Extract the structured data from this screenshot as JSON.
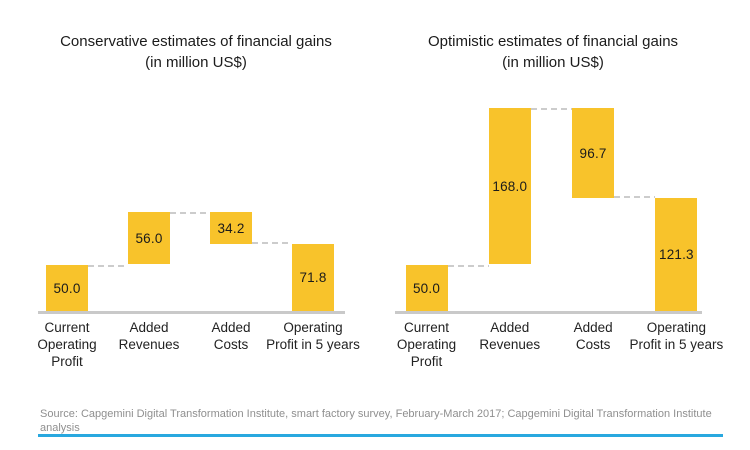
{
  "page": {
    "source_note": "Source: Capgemini Digital Transformation Institute, smart factory survey, February-March 2017; Capgemini Digital Transformation Institute analysis"
  },
  "colors": {
    "bar": "#F8C32B",
    "connector": "#CCCCCC",
    "axis": "#C9C9C9",
    "title_text": "#1B1B1B",
    "value_text": "#1B1B1B",
    "category_text": "#222222",
    "source_text": "#8F8F8F",
    "footer_accent": "#29A8DF"
  },
  "chart_data": [
    {
      "type": "waterfall",
      "title": "Conservative estimates of financial gains",
      "subtitle": "(in million US$)",
      "unit": "million US$",
      "categories": [
        "Current Operating Profit",
        "Added Revenues",
        "Added Costs",
        "Operating Profit in 5 years"
      ],
      "category_lines": [
        [
          "Current",
          "Operating",
          "Profit"
        ],
        [
          "Added",
          "Revenues"
        ],
        [
          "Added",
          "Costs"
        ],
        [
          "Operating",
          "Profit in 5 years"
        ]
      ],
      "measures": [
        "start",
        "increase",
        "decrease",
        "total"
      ],
      "values": [
        50.0,
        56.0,
        34.2,
        71.8
      ],
      "value_labels": [
        "50.0",
        "56.0",
        "34.2",
        "71.8"
      ],
      "baseline_value": 0,
      "grid": false,
      "legend": "none"
    },
    {
      "type": "waterfall",
      "title": "Optimistic estimates of financial gains",
      "subtitle": "(in million US$)",
      "unit": "million US$",
      "categories": [
        "Current Operating Profit",
        "Added Revenues",
        "Added Costs",
        "Operating Profit in 5 years"
      ],
      "category_lines": [
        [
          "Current",
          "Operating",
          "Profit"
        ],
        [
          "Added",
          "Revenues"
        ],
        [
          "Added",
          "Costs"
        ],
        [
          "Operating",
          "Profit in 5 years"
        ]
      ],
      "measures": [
        "start",
        "increase",
        "decrease",
        "total"
      ],
      "values": [
        50.0,
        168.0,
        96.7,
        121.3
      ],
      "value_labels": [
        "50.0",
        "168.0",
        "96.7",
        "121.3"
      ],
      "baseline_value": 0,
      "grid": false,
      "legend": "none"
    }
  ]
}
